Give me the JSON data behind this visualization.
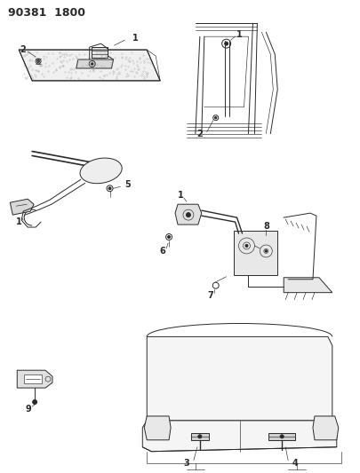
{
  "title": "90381  1800",
  "bg_color": "#ffffff",
  "line_color": "#2a2a2a",
  "title_fontsize": 9,
  "figsize": [
    4.05,
    5.33
  ],
  "dpi": 100,
  "labels": {
    "tl1": "1",
    "tl2": "2",
    "tr1": "1",
    "tr2": "2",
    "ml1": "1",
    "ml5": "5",
    "mr1": "1",
    "mr6": "6",
    "mr7": "7",
    "mr8": "8",
    "bl9": "9",
    "br3": "3",
    "br4": "4"
  }
}
